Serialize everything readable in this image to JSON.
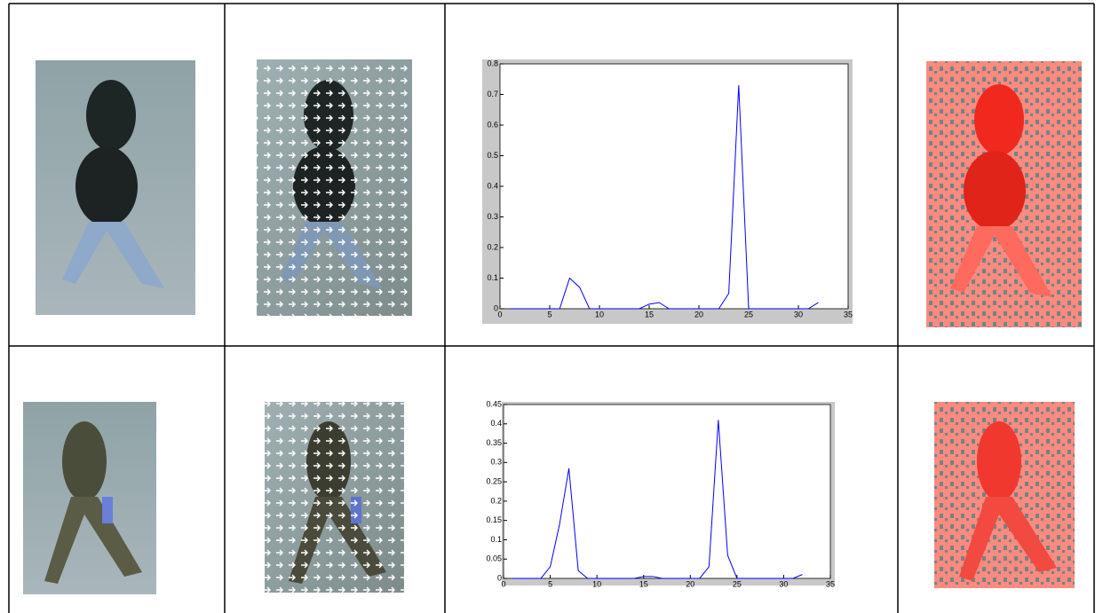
{
  "chart_data": [
    {
      "type": "line",
      "x": [
        1,
        2,
        3,
        4,
        5,
        6,
        7,
        8,
        9,
        10,
        11,
        12,
        13,
        14,
        15,
        16,
        17,
        18,
        19,
        20,
        21,
        22,
        23,
        24,
        25,
        26,
        27,
        28,
        29,
        30,
        31,
        32
      ],
      "series": [
        {
          "color": "#0000ff",
          "values": [
            0,
            0,
            0,
            0,
            0,
            0,
            0.1,
            0.07,
            0,
            0,
            0,
            0,
            0,
            0,
            0.015,
            0.02,
            0,
            0,
            0,
            0,
            0,
            0,
            0.05,
            0.73,
            0,
            0,
            0,
            0,
            0,
            0,
            0,
            0.02
          ]
        }
      ],
      "xlim": [
        0,
        35
      ],
      "xticks": [
        0,
        5,
        10,
        15,
        20,
        25,
        30,
        35
      ],
      "ylim": [
        0,
        0.8
      ],
      "yticks": [
        0,
        0.1,
        0.2,
        0.3,
        0.4,
        0.5,
        0.6,
        0.7,
        0.8
      ]
    },
    {
      "type": "line",
      "x": [
        1,
        2,
        3,
        4,
        5,
        6,
        7,
        8,
        9,
        10,
        11,
        12,
        13,
        14,
        15,
        16,
        17,
        18,
        19,
        20,
        21,
        22,
        23,
        24,
        25,
        26,
        27,
        28,
        29,
        30,
        31,
        32
      ],
      "series": [
        {
          "color": "#0000ff",
          "values": [
            0,
            0,
            0,
            0,
            0.03,
            0.14,
            0.285,
            0.02,
            0,
            0,
            0,
            0,
            0,
            0,
            0.005,
            0.005,
            0,
            0,
            0,
            0,
            0,
            0.03,
            0.41,
            0.06,
            0,
            0,
            0,
            0,
            0,
            0,
            0,
            0.01
          ]
        }
      ],
      "xlim": [
        0,
        35
      ],
      "xticks": [
        0,
        5,
        10,
        15,
        20,
        25,
        30,
        35
      ],
      "ylim": [
        0,
        0.45
      ],
      "yticks": [
        0,
        0.05,
        0.1,
        0.15,
        0.2,
        0.25,
        0.3,
        0.35,
        0.4,
        0.45
      ]
    }
  ]
}
